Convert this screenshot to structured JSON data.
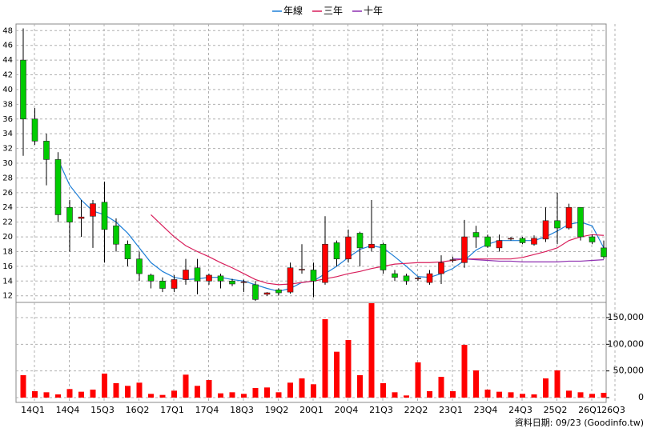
{
  "chart_data": {
    "type": "candlestick",
    "legend": "top",
    "grid": true,
    "up_color": "#ff0000",
    "down_color": "#00cc00",
    "categories": [
      "14Q1",
      null,
      null,
      "14Q4",
      null,
      null,
      "15Q3",
      null,
      null,
      "16Q2",
      null,
      null,
      "17Q1",
      null,
      null,
      "17Q4",
      null,
      null,
      "18Q3",
      null,
      null,
      "19Q2",
      null,
      null,
      "20Q1",
      null,
      null,
      "20Q4",
      null,
      null,
      "21Q3",
      null,
      null,
      "22Q2",
      null,
      null,
      "23Q1",
      null,
      null,
      "23Q4",
      null,
      null,
      "24Q3",
      null,
      null,
      "25Q2",
      null,
      null,
      "26Q1",
      null,
      "26Q3"
    ],
    "ohlc": {
      "open": [
        44,
        36,
        33,
        30.5,
        24,
        22.5,
        22.8,
        24.7,
        21.5,
        19,
        17,
        14.8,
        14,
        13,
        14.2,
        15.8,
        14,
        14.7,
        14,
        13.8,
        13.5,
        12.2,
        12.8,
        12.5,
        15.5,
        15.5,
        13.8,
        19.2,
        17,
        20.5,
        18.5,
        19,
        15,
        14.7,
        14.3,
        13.8,
        15,
        16.8,
        16.5,
        20.6,
        20,
        18.5,
        19.7,
        19.8,
        19,
        19.7,
        22.2,
        21.2,
        24,
        20,
        18.5
      ],
      "high": [
        48.3,
        37.5,
        34,
        31.5,
        25,
        25,
        25,
        27.5,
        22.5,
        19.5,
        18,
        15,
        14.5,
        14.8,
        17,
        17,
        15,
        15,
        14.3,
        14.2,
        14,
        12.5,
        13,
        16.5,
        19,
        16.5,
        22.8,
        19.5,
        21,
        20.7,
        25,
        19.2,
        15.5,
        15,
        14.6,
        15.5,
        17.5,
        17.3,
        22.3,
        21.5,
        20.3,
        20.3,
        20,
        20,
        20.2,
        24,
        26,
        24.5,
        24,
        20.3,
        19.5
      ],
      "low": [
        31,
        32.5,
        27,
        22,
        18,
        20,
        18.5,
        16.5,
        18,
        16,
        14,
        13,
        12.5,
        12.5,
        13.5,
        12.2,
        13.5,
        13,
        13.3,
        12.5,
        11.3,
        12,
        12,
        12.3,
        15,
        11.8,
        13.5,
        16,
        16.5,
        16,
        18,
        15,
        14,
        13.5,
        14,
        13.5,
        13.6,
        16.5,
        15.8,
        18.5,
        18.5,
        18,
        19.5,
        19,
        18.8,
        19.3,
        19,
        21,
        19.5,
        19,
        17
      ],
      "close": [
        36,
        33,
        30.5,
        23,
        22,
        22.7,
        24.5,
        21,
        19,
        17,
        15,
        14,
        13,
        14.2,
        15.5,
        14,
        14.8,
        14,
        13.6,
        13.9,
        11.5,
        12.4,
        12.4,
        15.8,
        15.6,
        14,
        19,
        17,
        20,
        18.5,
        19,
        15.5,
        14.5,
        14,
        14.4,
        15,
        16.5,
        16.9,
        20,
        20,
        18.7,
        19.5,
        19.8,
        19.2,
        19.8,
        22.2,
        21.2,
        24,
        20,
        19.3,
        17.3
      ]
    },
    "series": [
      {
        "name": "年線",
        "color": "#1e7fd8",
        "values": [
          null,
          null,
          null,
          30.5,
          27,
          25,
          23.5,
          23,
          22,
          20.5,
          18.5,
          16.5,
          15.3,
          14.5,
          14.2,
          14.3,
          14.5,
          14.5,
          14.2,
          14,
          13.5,
          13,
          12.6,
          13,
          13.8,
          14,
          15,
          16,
          17.2,
          18.3,
          18.8,
          18.5,
          17.3,
          16,
          14.6,
          14.5,
          15,
          15.7,
          16.8,
          18.2,
          19,
          19.5,
          19.5,
          19.5,
          19.5,
          20,
          20.8,
          21.7,
          22,
          21.5,
          18.5
        ]
      },
      {
        "name": "三年",
        "color": "#d81e5b",
        "values": [
          null,
          null,
          null,
          null,
          null,
          null,
          null,
          null,
          null,
          null,
          null,
          23,
          21.5,
          20,
          18.8,
          18,
          17.3,
          16.5,
          15.8,
          15,
          14.2,
          13.7,
          13.5,
          13.6,
          13.8,
          14,
          14.3,
          14.6,
          15,
          15.3,
          15.7,
          16,
          16.3,
          16.4,
          16.5,
          16.5,
          16.6,
          16.8,
          17,
          17,
          17,
          17,
          17,
          17.2,
          17.6,
          18,
          18.5,
          19.5,
          20,
          20.3,
          20.2
        ]
      },
      {
        "name": "十年",
        "color": "#8e2fb0",
        "values": [
          null,
          null,
          null,
          null,
          null,
          null,
          null,
          null,
          null,
          null,
          null,
          null,
          null,
          null,
          null,
          null,
          null,
          null,
          null,
          null,
          null,
          null,
          null,
          null,
          null,
          null,
          null,
          null,
          null,
          null,
          null,
          null,
          null,
          null,
          null,
          null,
          null,
          17,
          17,
          16.9,
          16.8,
          16.7,
          16.7,
          16.6,
          16.6,
          16.6,
          16.6,
          16.7,
          16.7,
          16.8,
          16.9
        ]
      }
    ],
    "volume": {
      "axis": "y2",
      "color": "#ff0000",
      "values": [
        42000,
        12000,
        10000,
        6000,
        16000,
        11000,
        15000,
        45000,
        27000,
        22000,
        28000,
        7000,
        5000,
        13000,
        43000,
        22000,
        33000,
        8000,
        10000,
        7000,
        18000,
        19000,
        10000,
        28000,
        36000,
        25000,
        147000,
        86000,
        108000,
        42000,
        177000,
        27000,
        10000,
        4000,
        66000,
        12000,
        39000,
        12000,
        99000,
        51000,
        15000,
        11000,
        10000,
        7000,
        6000,
        36000,
        51000,
        13000,
        10000,
        7000,
        9000
      ]
    },
    "ylim": [
      11.1,
      48.9
    ],
    "yticks": [
      12,
      14,
      16,
      18,
      20,
      22,
      24,
      26,
      28,
      30,
      32,
      34,
      36,
      38,
      40,
      42,
      44,
      46,
      48
    ],
    "y2lim": [
      0,
      180000
    ],
    "y2ticks": [
      0,
      {
        "value": 50000,
        "label": "50,000"
      },
      {
        "value": 100000,
        "label": "100,000"
      },
      {
        "value": 150000,
        "label": "150,000"
      }
    ],
    "source": "資料日期: 09/23  (Goodinfo.tw)"
  }
}
